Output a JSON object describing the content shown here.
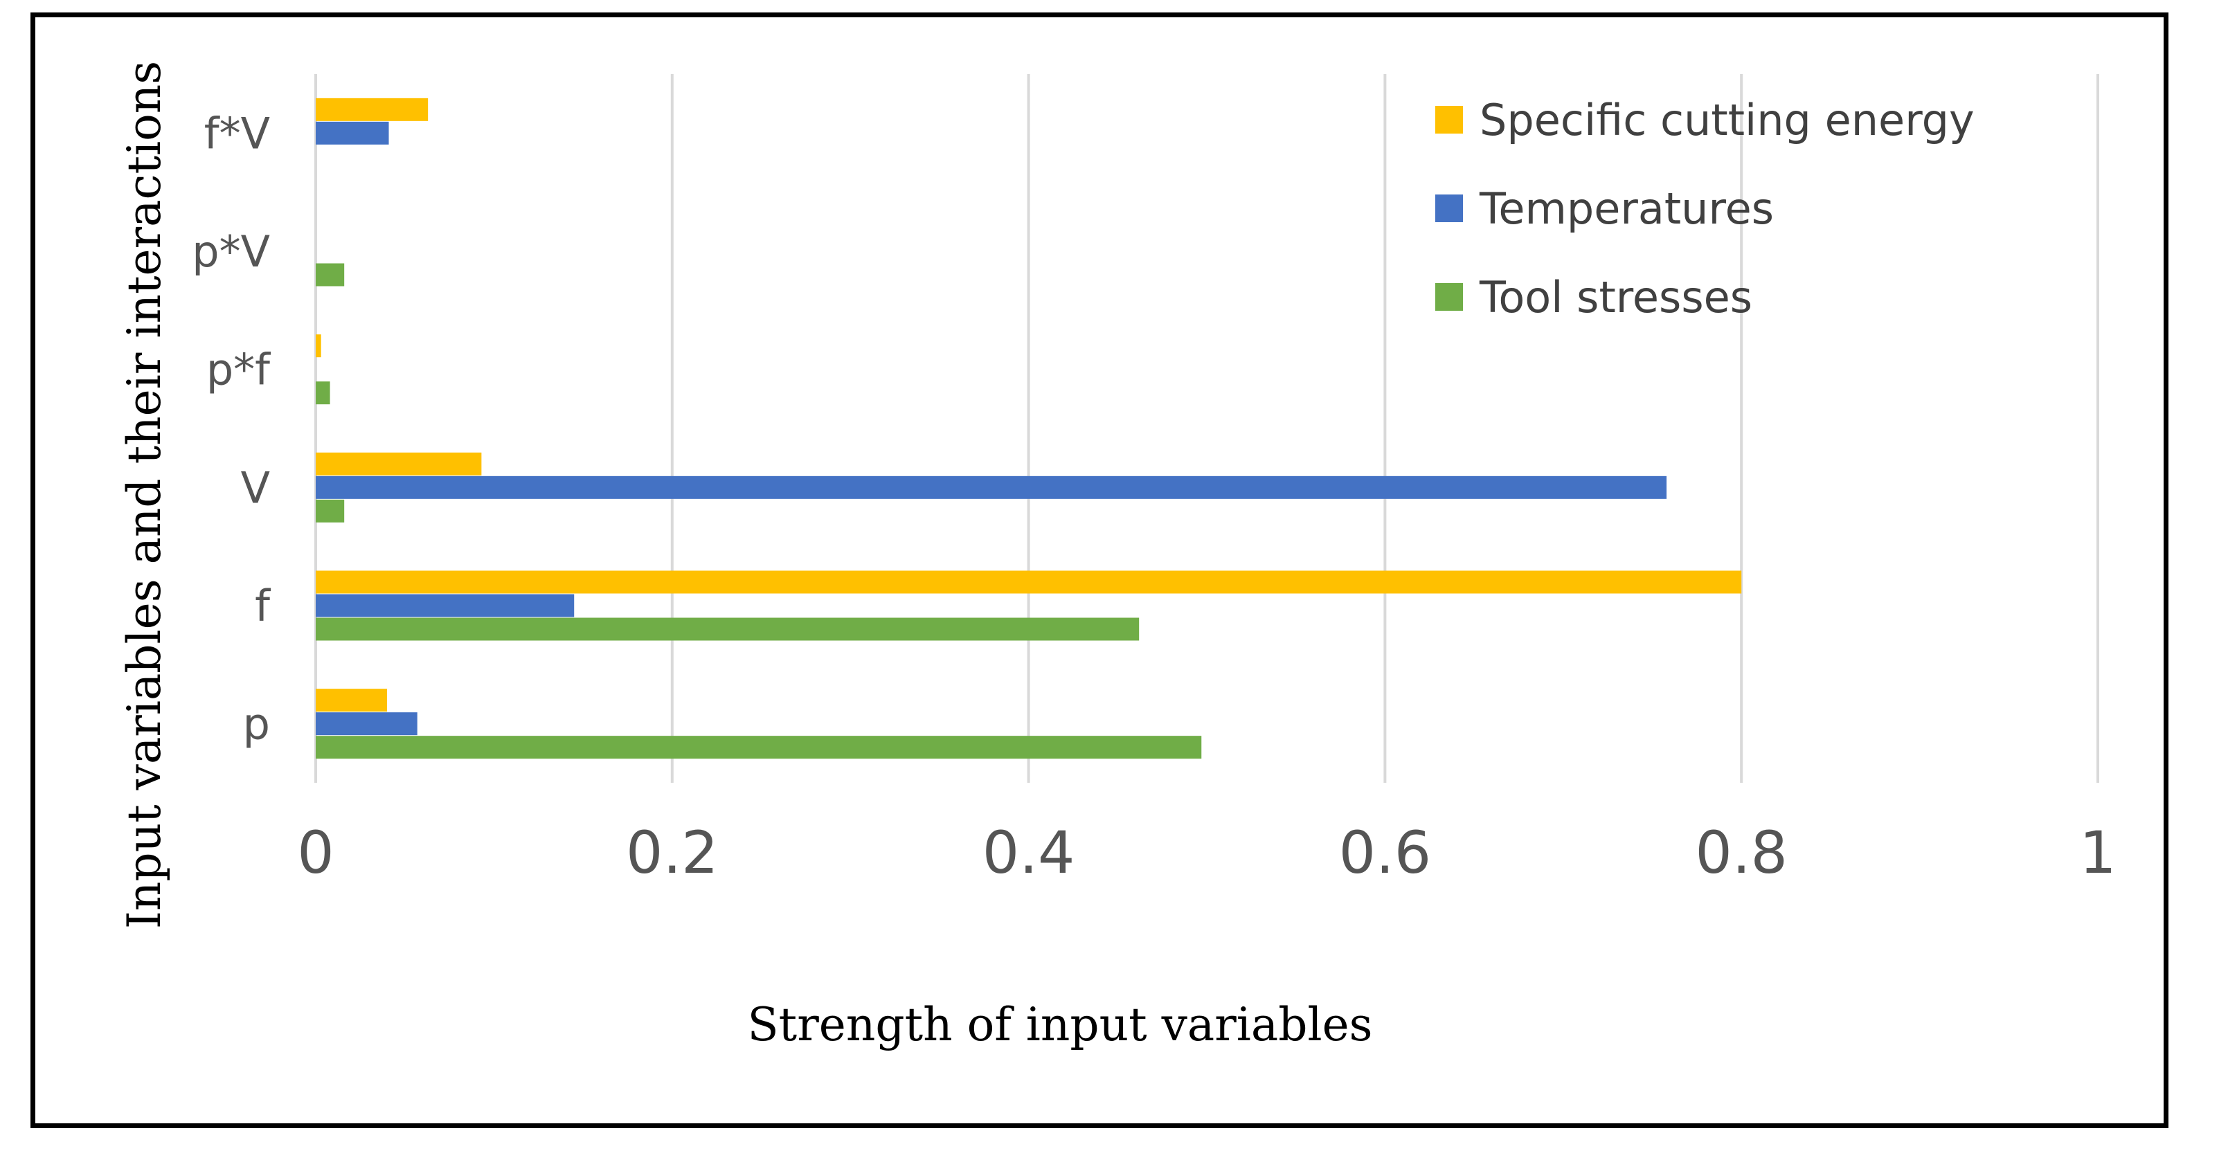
{
  "chart_data": {
    "type": "bar",
    "orientation": "horizontal",
    "categories": [
      "p",
      "f",
      "V",
      "p*f",
      "p*V",
      "f*V"
    ],
    "series": [
      {
        "name": "Specific cutting energy",
        "color": "#FFC000",
        "values": [
          0.04,
          0.8,
          0.093,
          0.003,
          0,
          0.063
        ]
      },
      {
        "name": "Temperatures",
        "color": "#4472C4",
        "values": [
          0.057,
          0.145,
          0.758,
          0,
          0,
          0.041
        ]
      },
      {
        "name": "Tool stresses",
        "color": "#70AD47",
        "values": [
          0.497,
          0.462,
          0.016,
          0.008,
          0.016,
          0
        ]
      }
    ],
    "xlim": [
      0,
      1
    ],
    "xticks": [
      "0",
      "0.2",
      "0.4",
      "0.6",
      "0.8",
      "1"
    ],
    "xlabel": "Strength of input variables",
    "ylabel": "Input variables and their interactions",
    "grid": true,
    "legend_position": "top-right"
  }
}
